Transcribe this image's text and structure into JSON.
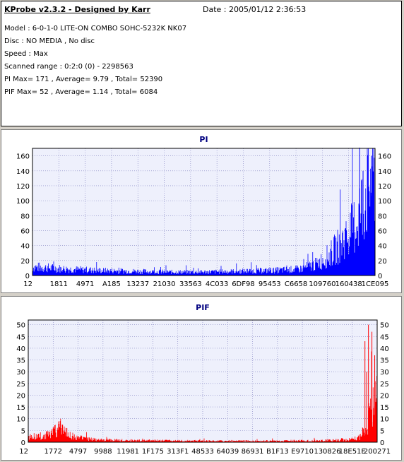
{
  "info": {
    "title": "KProbe v2.3.2 - Designed by Karr",
    "date": "Date : 2005/01/12 2:36:53",
    "lines": [
      "Model : 6-0-1-0 LITE-ON COMBO SOHC-5232K NK07",
      "Disc : NO MEDIA , No disc",
      "Speed : Max",
      "Scanned range : 0:2:0 (0) - 2298563",
      "PI Max= 171 , Average= 9.79 , Total= 52390",
      "PIF Max= 52 , Average= 1.14 , Total= 6084"
    ]
  },
  "chart_data": [
    {
      "type": "bar",
      "title": "PI",
      "color": "#0000ff",
      "ylim": [
        0,
        170
      ],
      "yticks": [
        0,
        20,
        40,
        60,
        80,
        100,
        120,
        140,
        160
      ],
      "xticks": [
        "12",
        "1811",
        "4971",
        "A185",
        "13237",
        "21030",
        "33563",
        "4C033",
        "6DF98",
        "95453",
        "C6658",
        "109760",
        "160438",
        "1CE095"
      ],
      "grid": true,
      "profile": {
        "x": [
          0,
          0.04,
          0.1,
          0.2,
          0.3,
          0.4,
          0.5,
          0.6,
          0.7,
          0.78,
          0.83,
          0.87,
          0.9,
          0.93,
          0.95,
          0.97,
          0.985,
          1.0
        ],
        "y": [
          12,
          11,
          9,
          7,
          6,
          5,
          5,
          6,
          7,
          9,
          16,
          30,
          45,
          62,
          80,
          110,
          135,
          150
        ]
      },
      "spikes": [
        {
          "x": 0.955,
          "y": 171
        },
        {
          "x": 0.965,
          "y": 140
        },
        {
          "x": 0.99,
          "y": 160
        }
      ]
    },
    {
      "type": "bar",
      "title": "PIF",
      "color": "#ff0000",
      "ylim": [
        0,
        52
      ],
      "yticks": [
        0,
        5,
        10,
        15,
        20,
        25,
        30,
        35,
        40,
        45,
        50
      ],
      "xticks": [
        "12",
        "1772",
        "4797",
        "9988",
        "11981",
        "1F175",
        "313F1",
        "48533",
        "64039",
        "86931",
        "B1F13",
        "E9710",
        "130826",
        "18E51E",
        "200271"
      ],
      "grid": true,
      "profile": {
        "x": [
          0,
          0.02,
          0.05,
          0.08,
          0.09,
          0.1,
          0.12,
          0.15,
          0.2,
          0.3,
          0.5,
          0.7,
          0.85,
          0.92,
          0.95,
          0.97,
          0.98,
          1.0
        ],
        "y": [
          3,
          2.5,
          3,
          5,
          7,
          5,
          3,
          2,
          1.2,
          0.8,
          0.6,
          0.6,
          0.8,
          1.2,
          2.5,
          6,
          14,
          20
        ]
      },
      "spikes": [
        {
          "x": 0.965,
          "y": 43
        },
        {
          "x": 0.975,
          "y": 50
        },
        {
          "x": 0.985,
          "y": 47
        },
        {
          "x": 0.993,
          "y": 37
        },
        {
          "x": 0.97,
          "y": 30
        }
      ]
    }
  ]
}
